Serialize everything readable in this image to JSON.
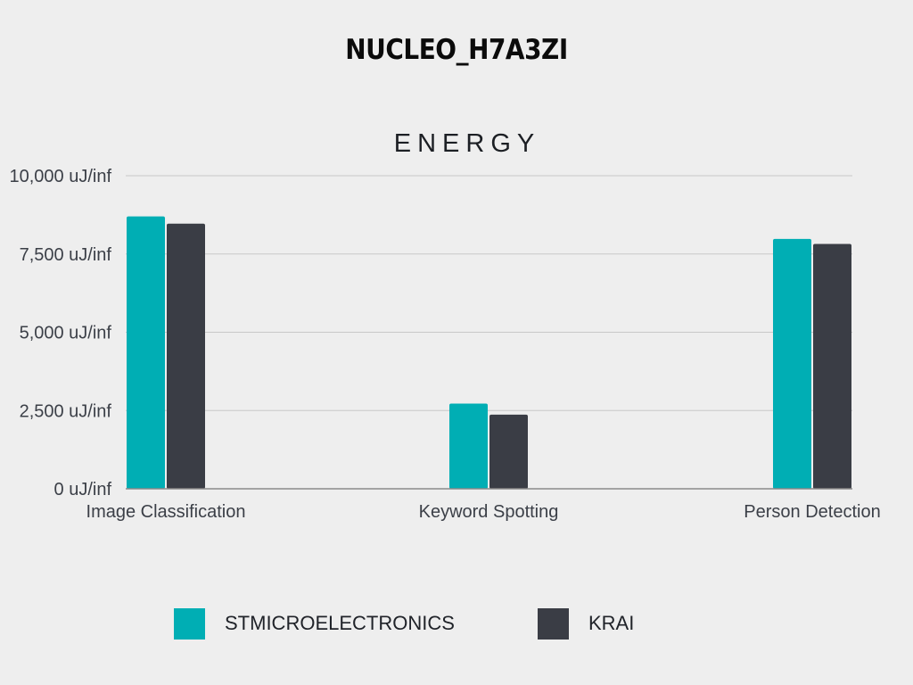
{
  "page": {
    "title": "NUCLEO_H7A3ZI"
  },
  "colors": {
    "background": "#eeeeee",
    "stmicroelectronics": "#00aeb4",
    "krai": "#3a3d45",
    "gridline": "#c8c8c8",
    "axis": "#8a8a8a"
  },
  "chart_data": {
    "type": "bar",
    "title": "ENERGY",
    "xlabel": "",
    "ylabel": "",
    "categories": [
      "Image Classification",
      "Keyword Spotting",
      "Person Detection"
    ],
    "series": [
      {
        "name": "STMICROELECTRONICS",
        "color": "#00aeb4",
        "values": [
          8700,
          2720,
          7980
        ]
      },
      {
        "name": "KRAI",
        "color": "#3a3d45",
        "values": [
          8470,
          2370,
          7820
        ]
      }
    ],
    "ylim": [
      0,
      10000
    ],
    "yticks": [
      0,
      2500,
      5000,
      7500,
      10000
    ],
    "ytick_labels": [
      "0 uJ/inf",
      "2,500 uJ/inf",
      "5,000 uJ/inf",
      "7,500 uJ/inf",
      "10,000 uJ/inf"
    ],
    "grid": true,
    "legend_position": "bottom"
  }
}
